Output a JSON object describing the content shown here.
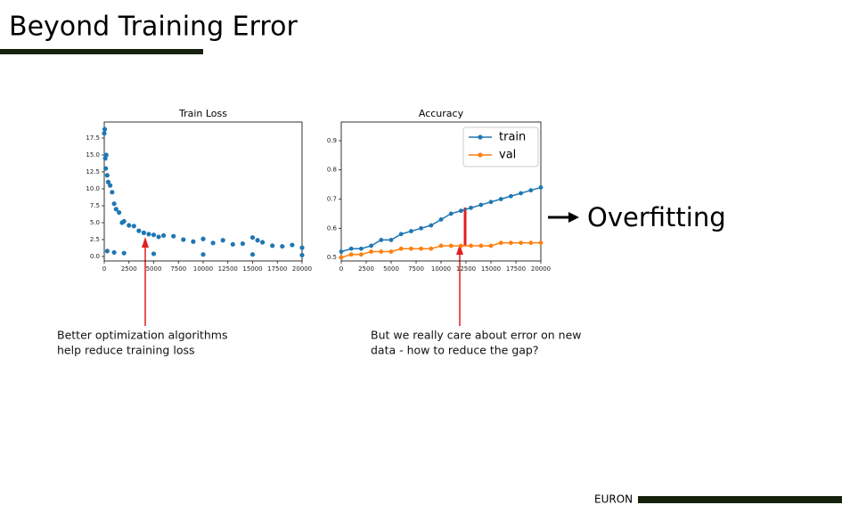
{
  "slide": {
    "title": "Beyond Training Error",
    "side_label": "Overfitting",
    "footer": "EURON"
  },
  "chart_data": [
    {
      "type": "scatter",
      "title": "Train Loss",
      "color": "#1f77b4",
      "x": [
        0,
        50,
        100,
        150,
        200,
        300,
        400,
        600,
        800,
        1000,
        1200,
        1500,
        1800,
        2000,
        2500,
        3000,
        3500,
        4000,
        4500,
        5000,
        5500,
        6000,
        7000,
        8000,
        9000,
        10000,
        11000,
        12000,
        13000,
        14000,
        15000,
        15500,
        16000,
        17000,
        18000,
        19000,
        20000,
        300,
        1000,
        2000,
        5000,
        10000,
        15000,
        20000
      ],
      "values": [
        18.2,
        18.8,
        14.5,
        13.0,
        15.0,
        12.0,
        11.0,
        10.5,
        9.5,
        7.8,
        7.0,
        6.5,
        5.0,
        5.2,
        4.6,
        4.5,
        3.8,
        3.5,
        3.3,
        3.2,
        2.9,
        3.1,
        3.0,
        2.5,
        2.2,
        2.6,
        2.0,
        2.4,
        1.8,
        1.9,
        2.8,
        2.4,
        2.1,
        1.6,
        1.5,
        1.7,
        1.3,
        0.8,
        0.6,
        0.5,
        0.4,
        0.3,
        0.3,
        0.2
      ],
      "xlim": [
        0,
        20000
      ],
      "xticks": [
        0,
        2500,
        5000,
        7500,
        10000,
        12500,
        15000,
        17500,
        20000
      ],
      "ylim": [
        -0.66,
        19.87
      ],
      "yticks": [
        {
          "value": 0,
          "label": "0.0"
        },
        2.5,
        {
          "value": 5,
          "label": "5.0"
        },
        7.5,
        {
          "value": 10,
          "label": "10.0"
        },
        12.5,
        {
          "value": 15,
          "label": "15.0"
        },
        17.5
      ],
      "annotation": [
        "Better optimization algorithms",
        "help reduce training loss"
      ]
    },
    {
      "type": "line",
      "title": "Accuracy",
      "legend": "upper right",
      "x": [
        0,
        1000,
        2000,
        3000,
        4000,
        5000,
        6000,
        7000,
        8000,
        9000,
        10000,
        11000,
        12000,
        13000,
        14000,
        15000,
        16000,
        17000,
        18000,
        19000,
        20000
      ],
      "series": [
        {
          "name": "train",
          "color": "#1f77b4",
          "values": [
            0.52,
            0.53,
            0.53,
            0.54,
            0.56,
            0.56,
            0.58,
            0.59,
            0.6,
            0.61,
            0.63,
            0.65,
            0.66,
            0.67,
            0.68,
            0.69,
            0.7,
            0.71,
            0.72,
            0.73,
            0.74
          ]
        },
        {
          "name": "val",
          "color": "#ff7f0e",
          "values": [
            0.5,
            0.51,
            0.51,
            0.52,
            0.52,
            0.52,
            0.53,
            0.53,
            0.53,
            0.53,
            0.54,
            0.54,
            0.54,
            0.54,
            0.54,
            0.54,
            0.55,
            0.55,
            0.55,
            0.55,
            0.55
          ]
        }
      ],
      "xlim": [
        0,
        20000
      ],
      "xticks": [
        0,
        2500,
        5000,
        7500,
        10000,
        12500,
        15000,
        17500,
        20000
      ],
      "ylim": [
        0.488,
        0.964
      ],
      "yticks": [
        0.5,
        0.6,
        0.7,
        0.8,
        0.9
      ],
      "annotation": [
        "But we really care about error on new",
        "data - how to reduce the gap?"
      ]
    }
  ]
}
